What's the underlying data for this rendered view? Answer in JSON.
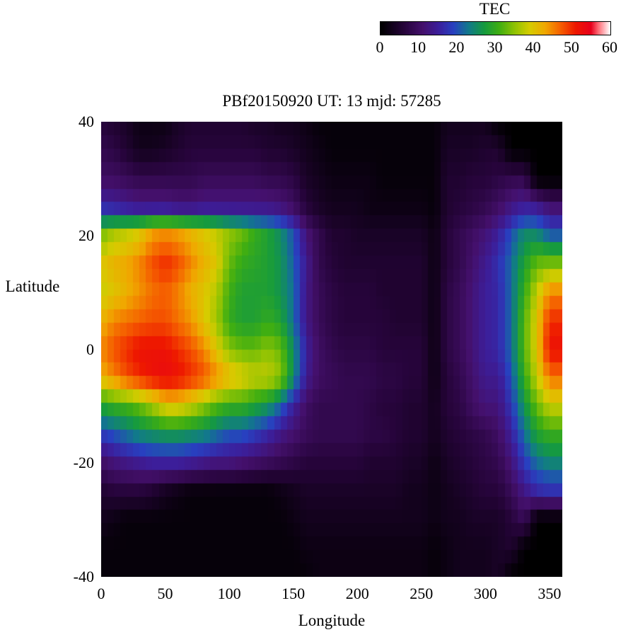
{
  "chart_data": {
    "type": "heatmap",
    "title": "PBf20150920  UT: 13  mjd: 57285",
    "xlabel": "Longitude",
    "ylabel": "Latitude",
    "colorbar_title": "TEC",
    "xlim": [
      0,
      360
    ],
    "ylim": [
      -40,
      40
    ],
    "zlim": [
      0,
      60
    ],
    "x_ticks": [
      0,
      50,
      100,
      150,
      200,
      250,
      300,
      350
    ],
    "y_ticks": [
      40,
      20,
      0,
      -20,
      -40
    ],
    "colorbar_ticks": [
      0,
      10,
      20,
      30,
      40,
      50,
      60
    ],
    "legend": "none",
    "grid_lines": "off",
    "lons": [
      0,
      10,
      20,
      30,
      40,
      50,
      60,
      70,
      80,
      90,
      100,
      110,
      120,
      130,
      140,
      150,
      160,
      170,
      180,
      190,
      200,
      210,
      220,
      230,
      240,
      250,
      260,
      270,
      280,
      290,
      300,
      310,
      320,
      330,
      340,
      350
    ],
    "lats": [
      40,
      35,
      30,
      25,
      20,
      15,
      10,
      5,
      0,
      -5,
      -10,
      -15,
      -20,
      -25,
      -30,
      -35,
      -40
    ],
    "values_unit": "TEC",
    "grid": [
      [
        6,
        5,
        4,
        2,
        2,
        2,
        4,
        5,
        5,
        5,
        5,
        5,
        4,
        4,
        3,
        3,
        2,
        1,
        1,
        1,
        1,
        1,
        1,
        1,
        1,
        1,
        1,
        3,
        3,
        3,
        3,
        0,
        0,
        0,
        0,
        0
      ],
      [
        8,
        7,
        5,
        3,
        3,
        4,
        5,
        6,
        6,
        6,
        6,
        6,
        6,
        5,
        5,
        4,
        3,
        2,
        1,
        1,
        1,
        1,
        1,
        1,
        1,
        1,
        1,
        4,
        4,
        4,
        5,
        5,
        0,
        0,
        0,
        0
      ],
      [
        10,
        10,
        9,
        8,
        8,
        8,
        8,
        8,
        9,
        9,
        9,
        9,
        9,
        8,
        8,
        7,
        4,
        3,
        2,
        2,
        2,
        2,
        1,
        1,
        1,
        1,
        1,
        5,
        5,
        6,
        6,
        7,
        8,
        8,
        0,
        0
      ],
      [
        16,
        15,
        14,
        13,
        13,
        13,
        12,
        12,
        13,
        13,
        13,
        13,
        13,
        13,
        12,
        10,
        6,
        4,
        3,
        3,
        3,
        2,
        2,
        2,
        2,
        2,
        1,
        5,
        6,
        7,
        8,
        10,
        13,
        15,
        14,
        11
      ],
      [
        34,
        37,
        38,
        40,
        44,
        45,
        44,
        42,
        40,
        38,
        35,
        33,
        30,
        28,
        25,
        20,
        12,
        8,
        5,
        5,
        4,
        4,
        4,
        4,
        4,
        4,
        2,
        6,
        8,
        10,
        12,
        15,
        20,
        25,
        25,
        21
      ],
      [
        40,
        42,
        43,
        45,
        48,
        50,
        48,
        45,
        42,
        40,
        33,
        30,
        29,
        28,
        26,
        21,
        14,
        8,
        6,
        5,
        5,
        5,
        5,
        5,
        5,
        5,
        2,
        6,
        8,
        11,
        14,
        17,
        22,
        28,
        33,
        34
      ],
      [
        38,
        40,
        42,
        44,
        46,
        47,
        45,
        42,
        40,
        37,
        31,
        28,
        28,
        28,
        26,
        22,
        13,
        9,
        7,
        6,
        6,
        6,
        5,
        5,
        5,
        5,
        2,
        7,
        9,
        12,
        15,
        16,
        22,
        30,
        38,
        45
      ],
      [
        42,
        45,
        46,
        47,
        48,
        48,
        46,
        44,
        40,
        36,
        30,
        28,
        28,
        30,
        28,
        22,
        13,
        9,
        7,
        6,
        6,
        6,
        6,
        5,
        5,
        5,
        2,
        7,
        9,
        12,
        15,
        16,
        22,
        32,
        40,
        50
      ],
      [
        45,
        48,
        50,
        52,
        52,
        52,
        50,
        48,
        45,
        40,
        35,
        33,
        33,
        35,
        33,
        25,
        15,
        10,
        8,
        7,
        7,
        7,
        6,
        6,
        6,
        6,
        2,
        7,
        9,
        12,
        15,
        16,
        22,
        32,
        40,
        52
      ],
      [
        42,
        45,
        48,
        50,
        52,
        53,
        52,
        50,
        48,
        45,
        42,
        40,
        38,
        38,
        35,
        25,
        14,
        10,
        9,
        8,
        8,
        8,
        7,
        7,
        6,
        6,
        2,
        6,
        8,
        11,
        14,
        14,
        20,
        30,
        38,
        46
      ],
      [
        28,
        30,
        31,
        33,
        36,
        40,
        40,
        38,
        35,
        32,
        30,
        30,
        28,
        26,
        21,
        15,
        10,
        8,
        8,
        8,
        8,
        7,
        6,
        6,
        5,
        5,
        3,
        6,
        7,
        10,
        12,
        12,
        18,
        26,
        33,
        38
      ],
      [
        18,
        20,
        22,
        24,
        25,
        26,
        26,
        25,
        24,
        22,
        20,
        20,
        18,
        16,
        13,
        11,
        9,
        8,
        8,
        8,
        8,
        7,
        7,
        6,
        5,
        5,
        3,
        5,
        6,
        7,
        8,
        10,
        15,
        22,
        28,
        30
      ],
      [
        10,
        12,
        13,
        14,
        15,
        15,
        15,
        14,
        13,
        12,
        12,
        11,
        10,
        9,
        8,
        7,
        6,
        6,
        6,
        6,
        6,
        5,
        5,
        5,
        4,
        4,
        2,
        4,
        5,
        6,
        7,
        8,
        12,
        18,
        22,
        24
      ],
      [
        5,
        6,
        6,
        6,
        5,
        3,
        2,
        1,
        1,
        1,
        1,
        1,
        1,
        1,
        2,
        3,
        4,
        4,
        4,
        4,
        4,
        4,
        4,
        4,
        3,
        3,
        2,
        3,
        4,
        5,
        6,
        6,
        9,
        13,
        16,
        17
      ],
      [
        3,
        2,
        1,
        1,
        1,
        1,
        1,
        1,
        1,
        1,
        1,
        1,
        1,
        1,
        1,
        2,
        3,
        3,
        3,
        3,
        3,
        3,
        3,
        3,
        3,
        3,
        2,
        3,
        3,
        4,
        4,
        4,
        6,
        9,
        0,
        0
      ],
      [
        1,
        1,
        1,
        1,
        1,
        1,
        1,
        1,
        1,
        1,
        1,
        1,
        1,
        1,
        1,
        1,
        2,
        2,
        2,
        2,
        2,
        2,
        2,
        2,
        2,
        2,
        1,
        2,
        3,
        3,
        3,
        4,
        5,
        0,
        0,
        0
      ],
      [
        1,
        1,
        1,
        1,
        1,
        1,
        1,
        1,
        1,
        1,
        1,
        1,
        1,
        1,
        1,
        1,
        1,
        2,
        2,
        2,
        2,
        2,
        2,
        2,
        2,
        2,
        1,
        2,
        3,
        3,
        3,
        4,
        0,
        0,
        0,
        0
      ]
    ],
    "palette": [
      {
        "v": 0,
        "c": "#000000"
      },
      {
        "v": 6,
        "c": "#26043a"
      },
      {
        "v": 11,
        "c": "#44106c"
      },
      {
        "v": 15,
        "c": "#3c1e9a"
      },
      {
        "v": 19,
        "c": "#2840c0"
      },
      {
        "v": 23,
        "c": "#117a8a"
      },
      {
        "v": 27,
        "c": "#159a3f"
      },
      {
        "v": 31,
        "c": "#3fae12"
      },
      {
        "v": 35,
        "c": "#8fc303"
      },
      {
        "v": 39,
        "c": "#d6cc00"
      },
      {
        "v": 43,
        "c": "#f0a800"
      },
      {
        "v": 47,
        "c": "#f56000"
      },
      {
        "v": 51,
        "c": "#ee1800"
      },
      {
        "v": 55,
        "c": "#e7001c"
      },
      {
        "v": 57,
        "c": "#ff6e78"
      },
      {
        "v": 60,
        "c": "#ffffff"
      }
    ]
  }
}
